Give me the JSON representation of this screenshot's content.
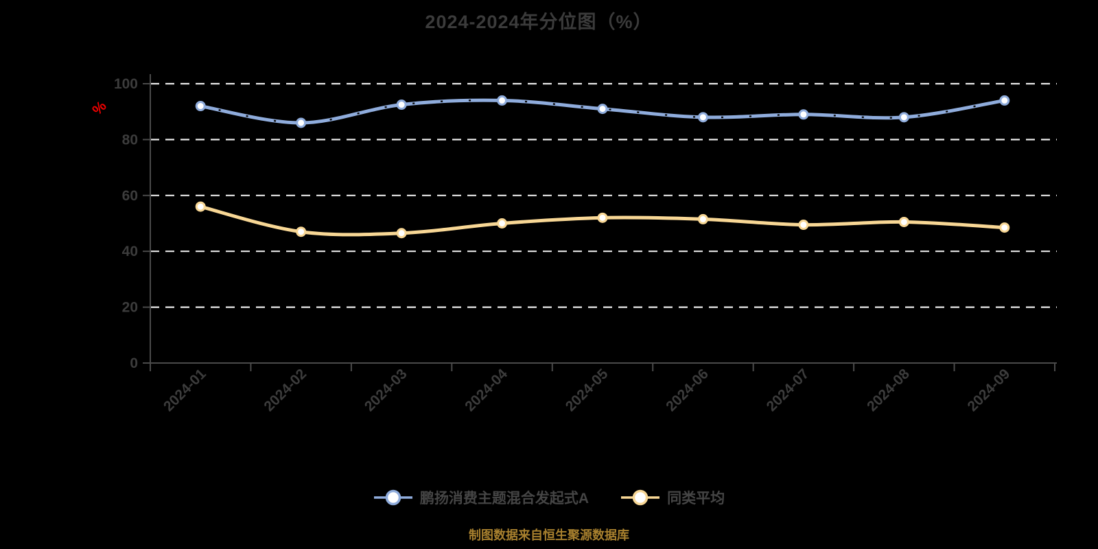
{
  "header": {
    "title": "2024-2024年分位图（%）"
  },
  "y_axis": {
    "unit_label": "%"
  },
  "footer": {
    "source_note": "制图数据来自恒生聚源数据库"
  },
  "colors": {
    "background": "#000000",
    "title_text": "#3B3B3B",
    "axis_line": "#4A4A4A",
    "axis_label": "#3C3C3C",
    "grid_line": "#E9E9E9",
    "unit_label": "#EE0000",
    "legend_text": "#454545",
    "source_note": "#A8802E",
    "marker_fill": "#FFFFFF"
  },
  "chart_data": {
    "type": "line",
    "title": "2024-2024年分位图（%）",
    "categories": [
      "2024-01",
      "2024-02",
      "2024-03",
      "2024-04",
      "2024-05",
      "2024-06",
      "2024-07",
      "2024-08",
      "2024-09"
    ],
    "series": [
      {
        "name": "鹏扬消费主题混合发起式A",
        "color": "#8FACDC",
        "values": [
          92,
          86,
          92.5,
          94,
          91,
          88,
          89,
          88,
          94
        ]
      },
      {
        "name": "同类平均",
        "color": "#F8D795",
        "values": [
          56,
          47,
          46.5,
          50,
          52,
          51.5,
          49.5,
          50.5,
          48.5
        ]
      }
    ],
    "ylabel": "%",
    "ylim": [
      0,
      100
    ],
    "y_ticks": [
      0,
      20,
      40,
      60,
      80,
      100
    ],
    "grid": "horizontal-dashed",
    "x_label_rotation": 45,
    "legend_position": "bottom"
  }
}
